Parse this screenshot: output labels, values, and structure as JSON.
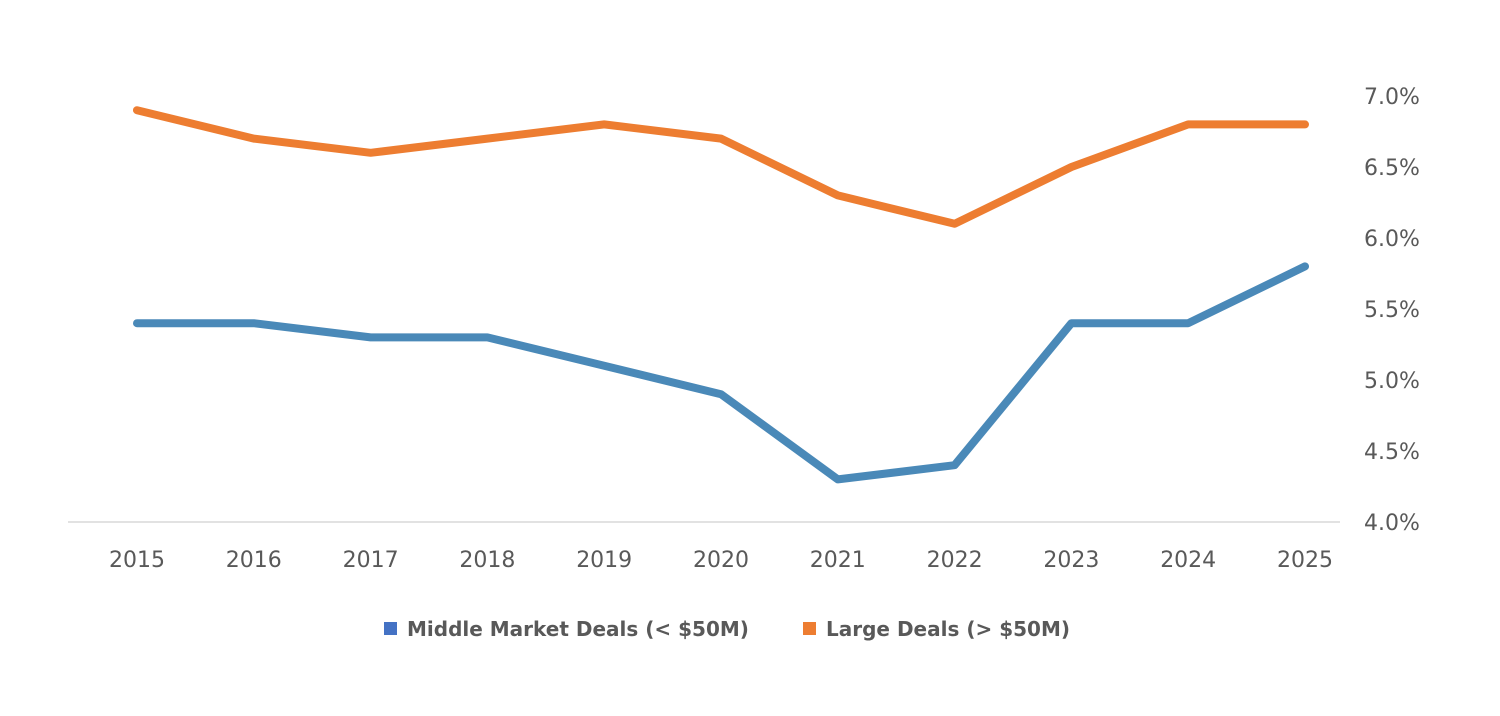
{
  "chart_data": {
    "type": "line",
    "title": "",
    "xlabel": "",
    "ylabel": "",
    "x": [
      "2015",
      "2016",
      "2017",
      "2018",
      "2019",
      "2020",
      "2021",
      "2022",
      "2023",
      "2024",
      "2025"
    ],
    "y_ticks": [
      "4.0%",
      "4.5%",
      "5.0%",
      "5.5%",
      "6.0%",
      "6.5%",
      "7.0%"
    ],
    "y_tick_values": [
      4.0,
      4.5,
      5.0,
      5.5,
      6.0,
      6.5,
      7.0
    ],
    "ylim": [
      4.0,
      7.0
    ],
    "y_axis_side": "right",
    "grid": false,
    "legend_position": "bottom",
    "series": [
      {
        "name": "Middle Market Deals (< $50M)",
        "color": "#4A89B8",
        "legend_color": "#4472C4",
        "values": [
          5.4,
          5.4,
          5.3,
          5.3,
          5.1,
          4.9,
          4.3,
          4.4,
          5.4,
          5.4,
          5.8
        ]
      },
      {
        "name": "Large Deals (> $50M)",
        "color": "#ED7D31",
        "legend_color": "#ED7D31",
        "values": [
          6.9,
          6.7,
          6.6,
          6.7,
          6.8,
          6.7,
          6.3,
          6.1,
          6.5,
          6.8,
          6.8
        ]
      }
    ]
  }
}
